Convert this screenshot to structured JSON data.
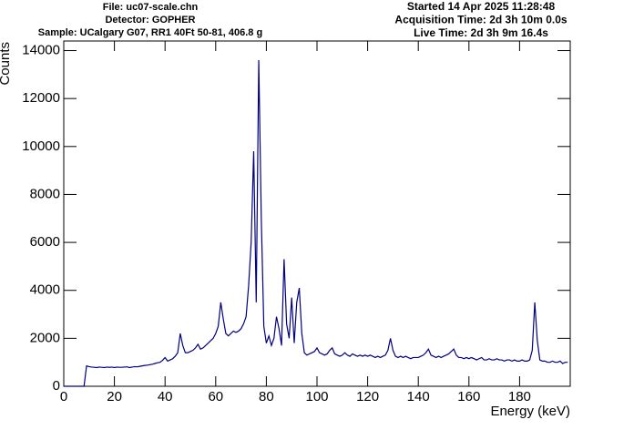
{
  "chart_data": {
    "type": "line",
    "info_left": [
      "File: uc07-scale.chn",
      "Detector: GOPHER",
      "Sample: UCalgary G07, RR1 40Ft 50-81, 406.8 g"
    ],
    "info_right": [
      "Started 14 Apr 2025 11:28:48",
      "Acquisition Time: 2d 3h 10m 0.0s",
      "Live Time: 2d 3h 9m 16.4s"
    ],
    "xlabel": "Energy (keV)",
    "ylabel": "Counts",
    "color": "#000080",
    "xlim": [
      0,
      200
    ],
    "ylim": [
      0,
      14400
    ],
    "xticks": [
      0,
      20,
      40,
      60,
      80,
      100,
      120,
      140,
      160,
      180
    ],
    "yticks": [
      0,
      2000,
      4000,
      6000,
      8000,
      10000,
      12000,
      14000
    ],
    "x": [
      0,
      1,
      2,
      3,
      4,
      5,
      6,
      7,
      8,
      9,
      10,
      11,
      12,
      13,
      14,
      15,
      16,
      17,
      18,
      19,
      20,
      21,
      22,
      23,
      24,
      25,
      26,
      27,
      28,
      29,
      30,
      31,
      32,
      33,
      34,
      35,
      36,
      37,
      38,
      39,
      40,
      41,
      42,
      43,
      44,
      45,
      46,
      47,
      48,
      49,
      50,
      51,
      52,
      53,
      54,
      55,
      56,
      57,
      58,
      59,
      60,
      61,
      62,
      63,
      64,
      65,
      66,
      67,
      68,
      69,
      70,
      71,
      72,
      73,
      74,
      75,
      76,
      77,
      78,
      79,
      80,
      81,
      82,
      83,
      84,
      85,
      86,
      87,
      88,
      89,
      90,
      91,
      92,
      93,
      94,
      95,
      96,
      97,
      98,
      99,
      100,
      101,
      102,
      103,
      104,
      105,
      106,
      107,
      108,
      109,
      110,
      111,
      112,
      113,
      114,
      115,
      116,
      117,
      118,
      119,
      120,
      121,
      122,
      123,
      124,
      125,
      126,
      127,
      128,
      129,
      130,
      131,
      132,
      133,
      134,
      135,
      136,
      137,
      138,
      139,
      140,
      141,
      142,
      143,
      144,
      145,
      146,
      147,
      148,
      149,
      150,
      151,
      152,
      153,
      154,
      155,
      156,
      157,
      158,
      159,
      160,
      161,
      162,
      163,
      164,
      165,
      166,
      167,
      168,
      169,
      170,
      171,
      172,
      173,
      174,
      175,
      176,
      177,
      178,
      179,
      180,
      181,
      182,
      183,
      184,
      185,
      186,
      187,
      188,
      189,
      190,
      191,
      192,
      193,
      194,
      195,
      196,
      197,
      198,
      199
    ],
    "values": [
      0,
      0,
      0,
      0,
      0,
      0,
      0,
      0,
      0,
      850,
      820,
      800,
      790,
      780,
      800,
      790,
      780,
      800,
      790,
      800,
      780,
      800,
      790,
      790,
      800,
      810,
      780,
      800,
      820,
      810,
      830,
      850,
      870,
      880,
      900,
      920,
      950,
      980,
      1000,
      1080,
      1200,
      1050,
      1100,
      1150,
      1250,
      1400,
      2200,
      1700,
      1400,
      1400,
      1450,
      1500,
      1600,
      1750,
      1550,
      1600,
      1700,
      1800,
      1900,
      2000,
      2200,
      2500,
      3500,
      2800,
      2200,
      2100,
      2200,
      2300,
      2250,
      2300,
      2400,
      2600,
      2900,
      4200,
      6000,
      9800,
      3500,
      13600,
      7000,
      2500,
      1800,
      2100,
      1700,
      2000,
      2900,
      2400,
      1700,
      5300,
      2600,
      2000,
      3700,
      1800,
      3500,
      4100,
      2200,
      1400,
      1300,
      1350,
      1400,
      1450,
      1600,
      1400,
      1350,
      1300,
      1350,
      1500,
      1600,
      1350,
      1300,
      1250,
      1300,
      1400,
      1300,
      1250,
      1350,
      1300,
      1250,
      1300,
      1250,
      1300,
      1250,
      1300,
      1250,
      1200,
      1250,
      1200,
      1250,
      1300,
      1500,
      2000,
      1500,
      1250,
      1200,
      1250,
      1200,
      1250,
      1200,
      1150,
      1200,
      1200,
      1200,
      1250,
      1300,
      1400,
      1550,
      1300,
      1250,
      1200,
      1250,
      1200,
      1250,
      1300,
      1350,
      1450,
      1550,
      1300,
      1200,
      1200,
      1150,
      1200,
      1150,
      1200,
      1150,
      1100,
      1150,
      1200,
      1100,
      1100,
      1150,
      1100,
      1100,
      1150,
      1100,
      1100,
      1050,
      1100,
      1100,
      1050,
      1100,
      1050,
      1050,
      1100,
      1050,
      1050,
      1100,
      1500,
      3500,
      1900,
      1100,
      1050,
      1050,
      1000,
      1000,
      1050,
      1000,
      1000,
      1050,
      950,
      1000,
      1000
    ]
  }
}
